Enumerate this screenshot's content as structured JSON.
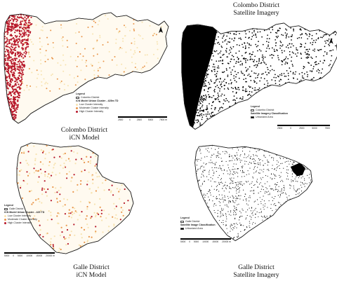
{
  "captions": {
    "colombo_icn": [
      "Colombo District",
      "iCN Model"
    ],
    "colombo_sat": [
      "Colombo District",
      "Satellite Imagery"
    ],
    "galle_icn": [
      "Galle District",
      "iCN Model"
    ],
    "galle_sat": [
      "Galle District",
      "Satellite Imagery"
    ]
  },
  "legends": {
    "colombo_icn": {
      "title": "Legend",
      "district": "Colombo District",
      "heading": "iCN Model Urban Cluster - 425m TD",
      "items": [
        "Low Cluster Intensity",
        "Moderate Cluster Intensity",
        "High Cluster Intensity"
      ]
    },
    "colombo_sat": {
      "title": "Legend",
      "district": "Colombo District",
      "heading": "Satellite Imagery Classification",
      "items": [
        "Urbanized Area"
      ]
    },
    "galle_icn": {
      "title": "Legend",
      "district": "Galle District",
      "heading": "iCN Model Urban Cluster - 425 TD",
      "items": [
        "Low Cluster Intensity",
        "Moderate Cluster Intensity",
        "High Cluster Intensity"
      ]
    },
    "galle_sat": {
      "title": "Legend",
      "district": "Galle District",
      "heading": "Satellite Image Classification",
      "items": [
        "Urbanized Area"
      ]
    }
  },
  "scales": {
    "colombo_icn": [
      "2500",
      "0",
      "2500",
      "5000",
      "7500 m"
    ],
    "colombo_sat": [
      "2500",
      "0",
      "2500",
      "5000",
      "7500"
    ],
    "galle_icn": [
      "5000",
      "0",
      "5000",
      "10000",
      "15000",
      "20000 m"
    ],
    "galle_sat": [
      "5000",
      "0",
      "5000",
      "10000",
      "15000",
      "20000 m"
    ]
  },
  "colors": {
    "low": "#f7e3b0",
    "moderate": "#e9954a",
    "high": "#b7182a",
    "urban": "#000000",
    "outline": "#222222"
  }
}
